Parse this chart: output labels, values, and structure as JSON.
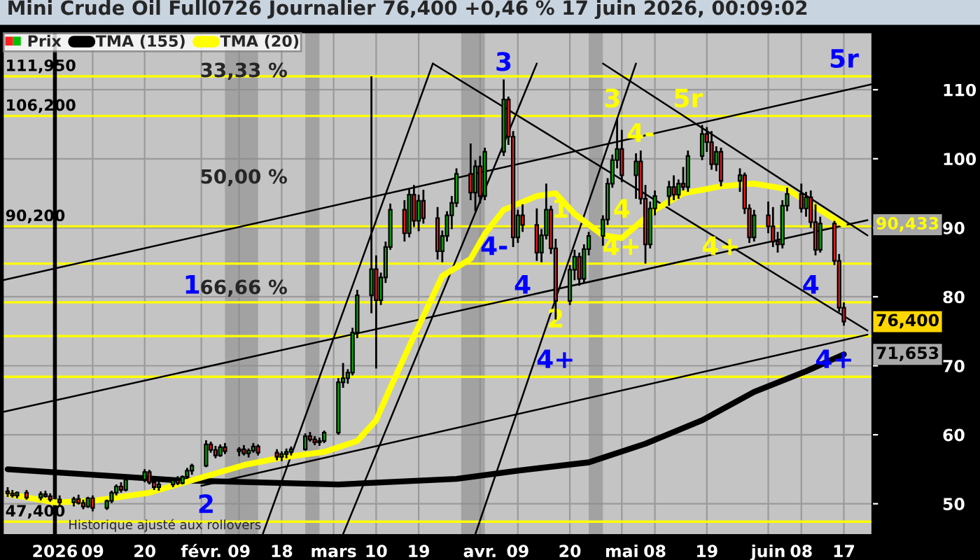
{
  "chart_data": {
    "type": "candlestick",
    "title": "Mini Crude Oil Full0726 Journalier 76,400 +0,46 % 17 juin 2026, 00:09:02",
    "series": [
      {
        "name": "Prix",
        "x": [
          "2025-12-22",
          "2025-12-23",
          "2025-12-24",
          "2025-12-26",
          "2025-12-29",
          "2025-12-30",
          "2025-12-31",
          "2026-01-02",
          "2026-01-05",
          "2026-01-06",
          "2026-01-07",
          "2026-01-08",
          "2026-01-09",
          "2026-01-12",
          "2026-01-13",
          "2026-01-14",
          "2026-01-15",
          "2026-01-16",
          "2026-01-20",
          "2026-01-21",
          "2026-01-22",
          "2026-01-23",
          "2026-01-26",
          "2026-01-27",
          "2026-01-28",
          "2026-01-29",
          "2026-01-30",
          "2026-02-02",
          "2026-02-03",
          "2026-02-04",
          "2026-02-05",
          "2026-02-06",
          "2026-02-09",
          "2026-02-10",
          "2026-02-11",
          "2026-02-12",
          "2026-02-13",
          "2026-02-17",
          "2026-02-18",
          "2026-02-19",
          "2026-02-20",
          "2026-02-23",
          "2026-02-24",
          "2026-02-25",
          "2026-02-26",
          "2026-02-27",
          "2026-03-02",
          "2026-03-03",
          "2026-03-04",
          "2026-03-05",
          "2026-03-06",
          "2026-03-09",
          "2026-03-10",
          "2026-03-11",
          "2026-03-12",
          "2026-03-13",
          "2026-03-16",
          "2026-03-17",
          "2026-03-18",
          "2026-03-19",
          "2026-03-20",
          "2026-03-23",
          "2026-03-24",
          "2026-03-25",
          "2026-03-26",
          "2026-03-27",
          "2026-03-30",
          "2026-03-31",
          "2026-04-01",
          "2026-04-02",
          "2026-04-06",
          "2026-04-07",
          "2026-04-08",
          "2026-04-09",
          "2026-04-10",
          "2026-04-13",
          "2026-04-14",
          "2026-04-15",
          "2026-04-16",
          "2026-04-17",
          "2026-04-20",
          "2026-04-21",
          "2026-04-22",
          "2026-04-23",
          "2026-04-24",
          "2026-04-27",
          "2026-04-28",
          "2026-04-29",
          "2026-04-30",
          "2026-05-01",
          "2026-05-04",
          "2026-05-05",
          "2026-05-06",
          "2026-05-07",
          "2026-05-08",
          "2026-05-11",
          "2026-05-12",
          "2026-05-13",
          "2026-05-14",
          "2026-05-15",
          "2026-05-18",
          "2026-05-19",
          "2026-05-20",
          "2026-05-21",
          "2026-05-22",
          "2026-05-26",
          "2026-05-27",
          "2026-05-28",
          "2026-05-29",
          "2026-06-01",
          "2026-06-02",
          "2026-06-03",
          "2026-06-04",
          "2026-06-05",
          "2026-06-08",
          "2026-06-09",
          "2026-06-10",
          "2026-06-11",
          "2026-06-12",
          "2026-06-15",
          "2026-06-16",
          "2026-06-17"
        ],
        "ohlc": [
          [
            51.8,
            52.4,
            51.0,
            51.5
          ],
          [
            51.5,
            52.0,
            50.9,
            51.2
          ],
          [
            51.2,
            51.8,
            50.8,
            51.6
          ],
          [
            51.6,
            52.0,
            50.6,
            50.9
          ],
          [
            50.9,
            51.8,
            50.5,
            51.4
          ],
          [
            51.4,
            51.9,
            50.9,
            51.1
          ],
          [
            51.1,
            51.5,
            50.3,
            50.6
          ],
          [
            50.6,
            51.2,
            49.8,
            50.2
          ],
          [
            50.2,
            51.0,
            49.6,
            50.7
          ],
          [
            50.7,
            51.3,
            49.9,
            50.1
          ],
          [
            50.1,
            50.6,
            49.2,
            49.6
          ],
          [
            49.6,
            51.0,
            49.4,
            50.8
          ],
          [
            50.8,
            51.2,
            48.9,
            49.4
          ],
          [
            49.4,
            50.6,
            49.1,
            50.4
          ],
          [
            50.4,
            51.9,
            50.1,
            51.6
          ],
          [
            51.6,
            52.8,
            51.2,
            52.5
          ],
          [
            52.5,
            53.1,
            51.6,
            52.0
          ],
          [
            52.0,
            53.8,
            51.8,
            53.5
          ],
          [
            53.5,
            55.0,
            53.1,
            54.6
          ],
          [
            54.6,
            54.9,
            52.8,
            53.1
          ],
          [
            53.1,
            53.6,
            52.0,
            52.4
          ],
          [
            52.4,
            53.2,
            51.9,
            52.8
          ],
          [
            52.8,
            53.8,
            52.4,
            53.4
          ],
          [
            53.4,
            54.0,
            52.7,
            53.0
          ],
          [
            53.0,
            54.1,
            52.8,
            53.9
          ],
          [
            53.9,
            55.2,
            53.6,
            54.8
          ],
          [
            54.8,
            55.8,
            54.2,
            55.5
          ],
          [
            55.5,
            59.2,
            55.3,
            58.6
          ],
          [
            58.6,
            59.0,
            57.4,
            57.8
          ],
          [
            57.8,
            58.4,
            56.6,
            57.0
          ],
          [
            57.0,
            58.6,
            56.8,
            58.2
          ],
          [
            58.2,
            58.8,
            57.2,
            57.6
          ],
          [
            57.6,
            58.2,
            56.9,
            57.9
          ],
          [
            57.9,
            58.5,
            57.0,
            57.3
          ],
          [
            57.3,
            58.0,
            56.7,
            57.7
          ],
          [
            57.7,
            58.8,
            57.4,
            58.3
          ],
          [
            58.3,
            58.6,
            57.0,
            57.4
          ],
          [
            57.4,
            57.9,
            56.3,
            56.8
          ],
          [
            56.8,
            57.6,
            56.2,
            57.2
          ],
          [
            57.2,
            58.0,
            56.6,
            57.5
          ],
          [
            57.5,
            58.3,
            57.0,
            57.9
          ],
          [
            57.9,
            60.2,
            57.7,
            59.8
          ],
          [
            59.8,
            60.4,
            59.0,
            59.3
          ],
          [
            59.3,
            59.8,
            58.5,
            58.9
          ],
          [
            58.9,
            59.6,
            58.4,
            59.1
          ],
          [
            59.1,
            60.6,
            58.8,
            60.3
          ],
          [
            60.3,
            68.2,
            60.0,
            67.6
          ],
          [
            67.6,
            70.4,
            66.8,
            68.2
          ],
          [
            68.2,
            69.5,
            67.4,
            69.0
          ],
          [
            69.0,
            75.5,
            68.6,
            74.8
          ],
          [
            74.8,
            81.0,
            74.0,
            80.2
          ],
          [
            80.2,
            111.95,
            77.6,
            84.0
          ],
          [
            84.0,
            86.0,
            69.6,
            79.5
          ],
          [
            79.5,
            83.5,
            78.8,
            82.8
          ],
          [
            82.8,
            88.0,
            82.0,
            87.2
          ],
          [
            87.2,
            93.5,
            86.8,
            92.6
          ],
          [
            92.6,
            94.0,
            88.0,
            89.2
          ],
          [
            89.2,
            95.6,
            88.6,
            94.8
          ],
          [
            94.8,
            96.2,
            90.1,
            91.0
          ],
          [
            91.0,
            94.8,
            89.5,
            93.9
          ],
          [
            93.9,
            95.5,
            90.6,
            91.4
          ],
          [
            91.4,
            93.0,
            85.4,
            86.6
          ],
          [
            86.6,
            89.6,
            85.0,
            88.8
          ],
          [
            88.8,
            92.4,
            88.0,
            91.8
          ],
          [
            91.8,
            94.6,
            89.8,
            93.6
          ],
          [
            93.6,
            98.6,
            93.0,
            97.8
          ],
          [
            97.8,
            102.2,
            94.0,
            95.1
          ],
          [
            95.1,
            99.8,
            92.4,
            98.9
          ],
          [
            98.9,
            100.4,
            93.5,
            94.6
          ],
          [
            94.6,
            101.6,
            94.0,
            101.0
          ],
          [
            101.0,
            111.5,
            100.4,
            108.6
          ],
          [
            108.6,
            109.0,
            102.0,
            103.2
          ],
          [
            103.2,
            104.0,
            87.2,
            88.6
          ],
          [
            88.6,
            92.6,
            87.8,
            91.8
          ],
          [
            91.8,
            93.4,
            89.4,
            90.4
          ],
          [
            90.4,
            92.8,
            85.2,
            86.4
          ],
          [
            86.4,
            89.8,
            85.0,
            88.9
          ],
          [
            88.9,
            96.4,
            88.3,
            92.6
          ],
          [
            92.6,
            93.2,
            86.2,
            87.0
          ],
          [
            87.0,
            88.4,
            76.7,
            79.4
          ],
          [
            79.4,
            84.6,
            78.8,
            83.9
          ],
          [
            83.9,
            86.8,
            82.4,
            85.8
          ],
          [
            85.8,
            86.4,
            81.6,
            82.6
          ],
          [
            82.6,
            87.6,
            82.0,
            86.9
          ],
          [
            86.9,
            89.4,
            86.0,
            88.8
          ],
          [
            88.8,
            91.8,
            87.4,
            91.2
          ],
          [
            91.2,
            97.2,
            90.4,
            96.4
          ],
          [
            96.4,
            100.6,
            95.8,
            99.8
          ],
          [
            99.8,
            105.8,
            98.6,
            101.4
          ],
          [
            101.4,
            104.2,
            96.6,
            97.6
          ],
          [
            97.6,
            100.8,
            94.2,
            99.6
          ],
          [
            99.6,
            101.2,
            93.4,
            94.2
          ],
          [
            94.2,
            96.2,
            84.8,
            87.6
          ],
          [
            87.6,
            93.8,
            87.0,
            92.8
          ],
          [
            92.8,
            95.4,
            91.8,
            94.6
          ],
          [
            94.6,
            96.8,
            93.2,
            95.9
          ],
          [
            95.9,
            97.6,
            94.0,
            94.8
          ],
          [
            94.8,
            97.0,
            94.2,
            96.4
          ],
          [
            96.4,
            98.8,
            95.4,
            95.9
          ],
          [
            95.9,
            101.2,
            95.2,
            100.4
          ],
          [
            100.4,
            104.9,
            99.8,
            103.6
          ],
          [
            103.6,
            104.6,
            101.0,
            102.4
          ],
          [
            102.4,
            104.0,
            98.4,
            99.2
          ],
          [
            99.2,
            101.8,
            98.2,
            101.0
          ],
          [
            101.0,
            101.6,
            96.0,
            96.8
          ],
          [
            96.8,
            98.6,
            95.2,
            97.6
          ],
          [
            97.6,
            98.0,
            92.0,
            92.8
          ],
          [
            92.8,
            93.4,
            87.8,
            88.6
          ],
          [
            88.6,
            92.6,
            88.0,
            91.8
          ],
          [
            91.8,
            93.8,
            89.2,
            90.2
          ],
          [
            90.2,
            93.0,
            87.2,
            88.0
          ],
          [
            88.0,
            89.4,
            86.4,
            87.6
          ],
          [
            87.6,
            94.0,
            87.0,
            93.2
          ],
          [
            93.2,
            95.8,
            92.4,
            94.9
          ],
          [
            94.9,
            96.4,
            92.2,
            92.8
          ],
          [
            92.8,
            95.2,
            91.6,
            94.4
          ],
          [
            94.4,
            95.4,
            90.0,
            90.8
          ],
          [
            90.8,
            93.4,
            86.0,
            86.8
          ],
          [
            86.8,
            91.6,
            86.4,
            90.6
          ],
          [
            90.6,
            91.0,
            84.6,
            85.2
          ],
          [
            85.2,
            86.2,
            77.8,
            78.4
          ],
          [
            78.4,
            79.2,
            75.8,
            76.4
          ]
        ]
      },
      {
        "name": "TMA (155)",
        "type": "line",
        "color": "#000000",
        "x": [
          "2025-12-22",
          "2026-01-27",
          "2026-03-02",
          "2026-03-27",
          "2026-04-09",
          "2026-04-24",
          "2026-05-06",
          "2026-05-18",
          "2026-05-29",
          "2026-06-09",
          "2026-06-17"
        ],
        "values": [
          55.0,
          53.4,
          52.8,
          53.6,
          54.8,
          56.0,
          58.7,
          62.1,
          66.2,
          69.2,
          71.653
        ]
      },
      {
        "name": "TMA (20)",
        "type": "line",
        "color": "#ffff00",
        "x": [
          "2025-12-22",
          "2026-01-01",
          "2026-01-09",
          "2026-01-21",
          "2026-02-02",
          "2026-02-10",
          "2026-02-18",
          "2026-02-27",
          "2026-03-06",
          "2026-03-10",
          "2026-03-13",
          "2026-03-18",
          "2026-03-24",
          "2026-03-30",
          "2026-04-02",
          "2026-04-06",
          "2026-04-13",
          "2026-04-17",
          "2026-04-21",
          "2026-04-27",
          "2026-05-01",
          "2026-05-08",
          "2026-05-14",
          "2026-05-22",
          "2026-05-29",
          "2026-06-05",
          "2026-06-10",
          "2026-06-17"
        ],
        "values": [
          51.4,
          50.2,
          50.4,
          51.6,
          54.0,
          55.6,
          56.7,
          57.5,
          59.1,
          62.1,
          66.8,
          74.3,
          83.0,
          85.5,
          89.1,
          92.6,
          94.6,
          95.0,
          92.0,
          88.9,
          88.5,
          92.6,
          95.0,
          96.0,
          96.4,
          95.6,
          93.4,
          90.433
        ]
      },
      {
        "type": "line",
        "color": "#000000",
        "x": [
          "2025-12-21",
          "2026-06-23"
        ],
        "values": [
          82.4,
          110.8
        ]
      },
      {
        "type": "line",
        "color": "#000000",
        "x": [
          "2025-12-21",
          "2026-06-22"
        ],
        "values": [
          63.3,
          91.1
        ]
      },
      {
        "type": "line",
        "color": "#000000",
        "x": [
          "2026-02-01",
          "2026-06-22"
        ],
        "values": [
          52.6,
          74.5
        ]
      },
      {
        "type": "line",
        "color": "#000000",
        "x": [
          "2026-02-14",
          "2026-03-22"
        ],
        "values": [
          45.6,
          113.8
        ]
      },
      {
        "type": "line",
        "color": "#000000",
        "x": [
          "2026-03-03",
          "2026-04-13"
        ],
        "values": [
          45.6,
          113.8
        ]
      },
      {
        "type": "line",
        "color": "#000000",
        "x": [
          "2026-03-31",
          "2026-05-04"
        ],
        "values": [
          45.6,
          113.8
        ]
      },
      {
        "type": "line",
        "color": "#000000",
        "x": [
          "2026-03-22",
          "2026-06-22"
        ],
        "values": [
          113.8,
          75.1
        ]
      },
      {
        "type": "line",
        "color": "#000000",
        "x": [
          "2026-04-27",
          "2026-06-22"
        ],
        "values": [
          113.8,
          88.9
        ]
      }
    ],
    "xlim": [
      "2025-12-21",
      "2026-06-23"
    ],
    "xticks": [
      {
        "value": "2026-01-01",
        "label": "2026"
      },
      {
        "value": "2026-01-09",
        "label": "09"
      },
      {
        "value": "2026-01-20",
        "label": "20"
      },
      {
        "value": "2026-02-01",
        "label": "févr."
      },
      {
        "value": "2026-02-09",
        "label": "09"
      },
      {
        "value": "2026-02-18",
        "label": "18"
      },
      {
        "value": "2026-03-01",
        "label": "mars"
      },
      {
        "value": "2026-03-10",
        "label": "10"
      },
      {
        "value": "2026-03-19",
        "label": "19"
      },
      {
        "value": "2026-04-01",
        "label": "avr."
      },
      {
        "value": "2026-04-09",
        "label": "09"
      },
      {
        "value": "2026-04-20",
        "label": "20"
      },
      {
        "value": "2026-05-01",
        "label": "mai"
      },
      {
        "value": "2026-05-08",
        "label": "08"
      },
      {
        "value": "2026-05-19",
        "label": "19"
      },
      {
        "value": "2026-06-01",
        "label": "juin"
      },
      {
        "value": "2026-06-08",
        "label": "08"
      },
      {
        "value": "2026-06-17",
        "label": "17"
      }
    ],
    "ylim": [
      45.5,
      118.3
    ],
    "yticks": [
      50,
      60,
      70,
      80,
      90,
      100,
      110
    ],
    "grid": true,
    "legend": "top left",
    "ref_lines": [
      {
        "axis": "y",
        "value": 111.95,
        "label": "111,950",
        "color": "#ffff00"
      },
      {
        "axis": "y",
        "value": 106.2,
        "label": "106,200",
        "color": "#ffff00"
      },
      {
        "axis": "y",
        "value": 90.2,
        "label": "90,200",
        "color": "#ffff00"
      },
      {
        "axis": "y",
        "value": 84.8,
        "label": null,
        "color": "#ffff00"
      },
      {
        "axis": "y",
        "value": 79.2,
        "label": null,
        "color": "#ffff00"
      },
      {
        "axis": "y",
        "value": 74.3,
        "label": null,
        "color": "#ffff00"
      },
      {
        "axis": "y",
        "value": 68.4,
        "label": null,
        "color": "#ffff00"
      },
      {
        "axis": "y",
        "value": 47.4,
        "label": "47,400",
        "color": "#ffff00"
      },
      {
        "axis": "x",
        "value": "2026-01-01",
        "label": null,
        "color": "#000000"
      }
    ],
    "bands": [
      {
        "axis": "x",
        "from": "2026-02-06",
        "to": "2026-02-13",
        "label": null,
        "color": "#8c8c8c"
      },
      {
        "axis": "x",
        "from": "2026-02-23",
        "to": "2026-02-26",
        "label": null,
        "color": "#8c8c8c"
      },
      {
        "axis": "x",
        "from": "2026-03-28",
        "to": "2026-04-02",
        "label": null,
        "color": "#8c8c8c"
      },
      {
        "axis": "x",
        "from": "2026-04-24",
        "to": "2026-04-27",
        "label": null,
        "color": "#8c8c8c"
      }
    ],
    "annotations": [
      "33,33 %",
      "50,00 %",
      "66,66 %",
      "Historique ajusté aux rollovers",
      {
        "text": "76,400",
        "x": "2026-06-17",
        "y": 76.4
      },
      {
        "text": "90,433",
        "x": "2026-06-17",
        "y": 90.433
      },
      {
        "text": "71,653",
        "x": "2026-06-17",
        "y": 71.653
      },
      {
        "text": "3",
        "x": "2026-04-06",
        "y": 111.5
      },
      {
        "text": "5r",
        "x": "2026-06-17",
        "y": 111.95
      },
      {
        "text": "1",
        "x": "2026-01-30",
        "y": 79.2
      },
      {
        "text": "2",
        "x": "2026-02-02",
        "y": 47.4
      },
      {
        "text": "4-",
        "x": "2026-04-04",
        "y": 84.8
      },
      {
        "text": "4",
        "x": "2026-04-10",
        "y": 79.2
      },
      {
        "text": "4+",
        "x": "2026-04-17",
        "y": 68.4
      },
      {
        "text": "4",
        "x": "2026-06-10",
        "y": 79.2
      },
      {
        "text": "4+",
        "x": "2026-06-15",
        "y": 68.4
      },
      {
        "text": "3",
        "x": "2026-04-29",
        "y": 106.2
      },
      {
        "text": "5r",
        "x": "2026-05-15",
        "y": 106.2
      },
      {
        "text": "4-",
        "x": "2026-05-05",
        "y": 101.2
      },
      {
        "text": "1",
        "x": "2026-04-18",
        "y": 90.2
      },
      {
        "text": "4",
        "x": "2026-05-01",
        "y": 90.2
      },
      {
        "text": "4+",
        "x": "2026-05-01",
        "y": 84.8
      },
      {
        "text": "4+",
        "x": "2026-05-22",
        "y": 84.8
      },
      {
        "text": "2",
        "x": "2026-04-17",
        "y": 74.3
      }
    ]
  }
}
